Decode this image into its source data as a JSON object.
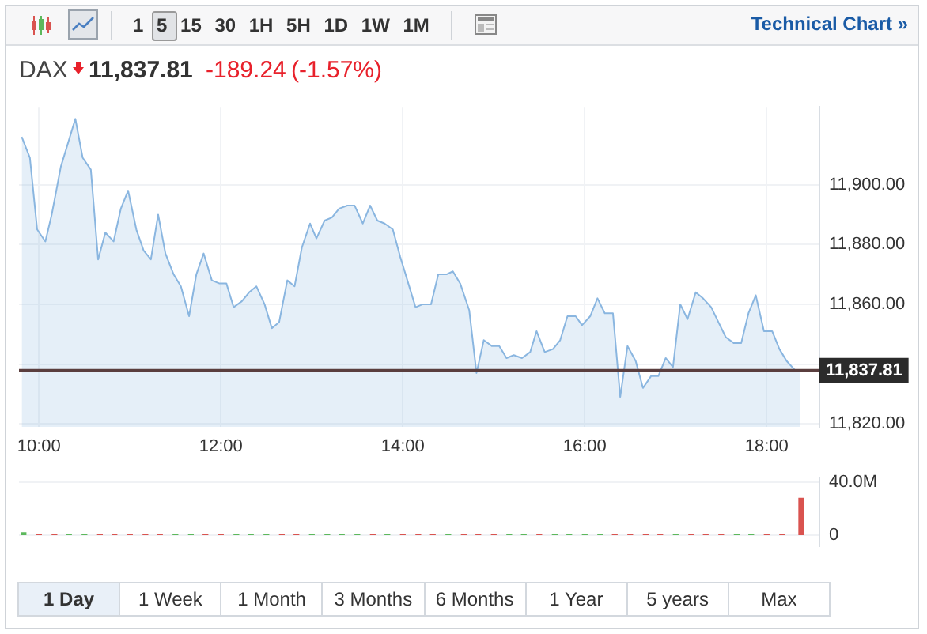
{
  "chart_data": [
    {
      "type": "area",
      "title": "DAX",
      "subtitle": "11,837.81",
      "annotations": [
        "-189.24",
        "(-1.57%)",
        "1 5 15 30 1H 5H 1D 1W 1M",
        "Technical Chart »"
      ],
      "x": [
        9.81,
        9.9,
        9.98,
        10.07,
        10.14,
        10.24,
        10.4,
        10.48,
        10.57,
        10.65,
        10.73,
        10.82,
        10.9,
        10.98,
        11.07,
        11.15,
        11.23,
        11.31,
        11.39,
        11.48,
        11.56,
        11.65,
        11.73,
        11.81,
        11.9,
        11.98,
        12.06,
        12.14,
        12.23,
        12.31,
        12.39,
        12.48,
        12.56,
        12.64,
        12.73,
        12.81,
        12.89,
        12.98,
        13.05,
        13.14,
        13.22,
        13.3,
        13.39,
        13.47,
        13.56,
        13.64,
        13.72,
        13.8,
        13.89,
        13.97,
        14.06,
        14.14,
        14.22,
        14.31,
        14.39,
        14.48,
        14.55,
        14.63,
        14.73,
        14.81,
        14.89,
        14.98,
        15.06,
        15.14,
        15.22,
        15.31,
        15.4,
        15.47,
        15.56,
        15.65,
        15.73,
        15.81,
        15.9,
        15.97,
        16.06,
        16.14,
        16.22,
        16.31,
        16.39,
        16.47,
        16.56,
        16.64,
        16.73,
        16.81,
        16.89,
        16.97,
        17.05,
        17.13,
        17.22,
        17.3,
        17.39,
        17.47,
        17.55,
        17.64,
        17.72,
        17.8,
        17.88,
        17.97,
        18.06,
        18.14,
        18.22,
        18.31,
        18.37
      ],
      "series": [
        {
          "color": "#8ab6e0",
          "values": [
            11916,
            11909,
            11885,
            11881,
            11890,
            11906,
            11922,
            11909,
            11905,
            11875,
            11884,
            11881,
            11892,
            11898,
            11885,
            11878,
            11875,
            11890,
            11877,
            11870,
            11866,
            11856,
            11870,
            11877,
            11868,
            11867,
            11867,
            11859,
            11861,
            11864,
            11866,
            11860,
            11852,
            11854,
            11868,
            11866,
            11879,
            11887,
            11882,
            11888,
            11889,
            11892,
            11893,
            11893,
            11887,
            11893,
            11888,
            11887,
            11885,
            11876,
            11867,
            11859,
            11860,
            11860,
            11870,
            11870,
            11871,
            11867,
            11858,
            11837,
            11848,
            11846,
            11846,
            11842,
            11843,
            11842,
            11844,
            11851,
            11844,
            11845,
            11848,
            11856,
            11856,
            11853,
            11856,
            11862,
            11857,
            11857,
            11829,
            11846,
            11841,
            11832,
            11836,
            11836,
            11842,
            11839,
            11860,
            11855,
            11864,
            11862,
            11859,
            11854,
            11849,
            11847,
            11847,
            11857,
            11863,
            11851,
            11851,
            11845,
            11841,
            11838,
            11838
          ]
        }
      ],
      "xlim": [
        9.78,
        18.58
      ],
      "xticks": [
        {
          "value": 10,
          "label": "10:00"
        },
        {
          "value": 12,
          "label": "12:00"
        },
        {
          "value": 14,
          "label": "14:00"
        },
        {
          "value": 16,
          "label": "16:00"
        },
        {
          "value": 18,
          "label": "18:00"
        }
      ],
      "ylim": [
        11819,
        11926
      ],
      "yticks": [
        {
          "value": 11820,
          "label": "11,820.00"
        },
        {
          "value": 11840,
          "label": null
        },
        {
          "value": 11860,
          "label": "11,860.00"
        },
        {
          "value": 11880,
          "label": "11,880.00"
        },
        {
          "value": 11900,
          "label": "11,900.00"
        }
      ],
      "ref_lines": [
        {
          "axis": "y",
          "value": 11837.81,
          "label": "11,837.81",
          "color": "#5a3e3e"
        }
      ],
      "grid": true,
      "legend": false
    },
    {
      "type": "bar",
      "annotations": [
        "1 Day",
        "1 Week",
        "1 Month",
        "3 Months",
        "6 Months",
        "1 Year",
        "5 years",
        "Max"
      ],
      "x": [
        9.83,
        10.0,
        10.17,
        10.33,
        10.5,
        10.67,
        10.83,
        11.0,
        11.17,
        11.33,
        11.5,
        11.67,
        11.83,
        12.0,
        12.17,
        12.33,
        12.5,
        12.67,
        12.83,
        13.0,
        13.17,
        13.33,
        13.5,
        13.67,
        13.83,
        14.0,
        14.17,
        14.33,
        14.5,
        14.67,
        14.83,
        15.0,
        15.17,
        15.33,
        15.5,
        15.67,
        15.83,
        16.0,
        16.17,
        16.33,
        16.5,
        16.67,
        16.83,
        17.0,
        17.17,
        17.33,
        17.5,
        17.67,
        17.83,
        18.0,
        18.17,
        18.38
      ],
      "values": [
        2,
        1,
        1,
        1,
        1,
        1,
        1,
        1,
        1,
        1,
        1,
        1,
        1,
        1,
        1,
        1,
        1,
        1,
        1,
        1,
        1,
        1,
        1,
        1,
        1,
        1,
        1,
        1,
        1,
        1,
        1,
        1,
        1,
        1,
        1,
        1,
        1,
        1,
        1,
        1,
        1,
        1,
        1,
        1,
        1,
        1,
        1,
        1,
        1,
        1,
        1,
        28
      ],
      "colors": [
        "#5cb85c",
        "#d9534f",
        "#d9534f",
        "#5cb85c",
        "#5cb85c",
        "#d9534f",
        "#d9534f",
        "#d9534f",
        "#d9534f",
        "#d9534f",
        "#5cb85c",
        "#5cb85c",
        "#d9534f",
        "#d9534f",
        "#5cb85c",
        "#5cb85c",
        "#5cb85c",
        "#d9534f",
        "#d9534f",
        "#5cb85c",
        "#5cb85c",
        "#5cb85c",
        "#5cb85c",
        "#d9534f",
        "#5cb85c",
        "#d9534f",
        "#d9534f",
        "#d9534f",
        "#5cb85c",
        "#d9534f",
        "#d9534f",
        "#d9534f",
        "#5cb85c",
        "#5cb85c",
        "#d9534f",
        "#5cb85c",
        "#5cb85c",
        "#5cb85c",
        "#5cb85c",
        "#d9534f",
        "#d9534f",
        "#d9534f",
        "#d9534f",
        "#5cb85c",
        "#d9534f",
        "#d9534f",
        "#d9534f",
        "#5cb85c",
        "#5cb85c",
        "#d9534f",
        "#d9534f",
        "#d9534f"
      ],
      "xlim": [
        9.78,
        18.58
      ],
      "ylim": [
        -8,
        43
      ],
      "yticks": [
        0,
        {
          "value": 40,
          "label": "40.0M"
        }
      ],
      "tick_labels": "y",
      "grid": true,
      "legend": false
    }
  ]
}
